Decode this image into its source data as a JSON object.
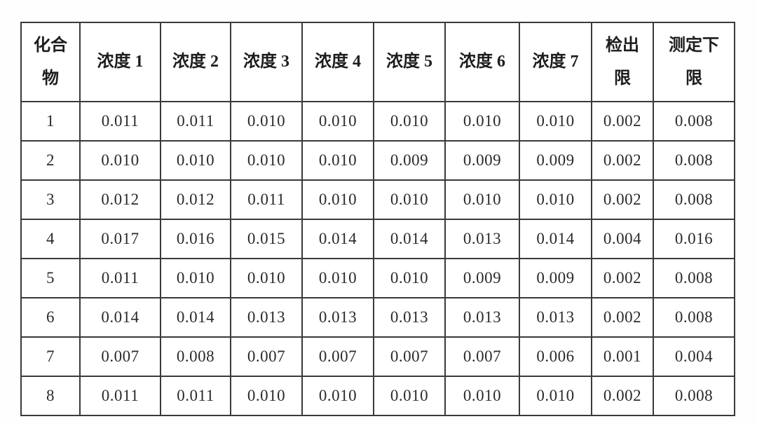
{
  "table": {
    "border_color": "#3a3a3a",
    "columns": [
      {
        "id": "compound",
        "label_lines": [
          "化合",
          "物"
        ]
      },
      {
        "id": "concentration-1",
        "label_lines": [
          "浓度 1"
        ]
      },
      {
        "id": "concentration-2",
        "label_lines": [
          "浓度 2"
        ]
      },
      {
        "id": "concentration-3",
        "label_lines": [
          "浓度 3"
        ]
      },
      {
        "id": "concentration-4",
        "label_lines": [
          "浓度 4"
        ]
      },
      {
        "id": "concentration-5",
        "label_lines": [
          "浓度 5"
        ]
      },
      {
        "id": "concentration-6",
        "label_lines": [
          "浓度 6"
        ]
      },
      {
        "id": "concentration-7",
        "label_lines": [
          "浓度 7"
        ]
      },
      {
        "id": "detection-limit",
        "label_lines": [
          "检出",
          "限"
        ]
      },
      {
        "id": "lower-determination-limit",
        "label_lines": [
          "测定下",
          "限"
        ]
      }
    ],
    "rows": [
      {
        "compound": "1",
        "values": [
          "0.011",
          "0.011",
          "0.010",
          "0.010",
          "0.010",
          "0.010",
          "0.010",
          "0.002",
          "0.008"
        ]
      },
      {
        "compound": "2",
        "values": [
          "0.010",
          "0.010",
          "0.010",
          "0.010",
          "0.009",
          "0.009",
          "0.009",
          "0.002",
          "0.008"
        ]
      },
      {
        "compound": "3",
        "values": [
          "0.012",
          "0.012",
          "0.011",
          "0.010",
          "0.010",
          "0.010",
          "0.010",
          "0.002",
          "0.008"
        ]
      },
      {
        "compound": "4",
        "values": [
          "0.017",
          "0.016",
          "0.015",
          "0.014",
          "0.014",
          "0.013",
          "0.014",
          "0.004",
          "0.016"
        ]
      },
      {
        "compound": "5",
        "values": [
          "0.011",
          "0.010",
          "0.010",
          "0.010",
          "0.010",
          "0.009",
          "0.009",
          "0.002",
          "0.008"
        ]
      },
      {
        "compound": "6",
        "values": [
          "0.014",
          "0.014",
          "0.013",
          "0.013",
          "0.013",
          "0.013",
          "0.013",
          "0.002",
          "0.008"
        ]
      },
      {
        "compound": "7",
        "values": [
          "0.007",
          "0.008",
          "0.007",
          "0.007",
          "0.007",
          "0.007",
          "0.006",
          "0.001",
          "0.004"
        ]
      },
      {
        "compound": "8",
        "values": [
          "0.011",
          "0.011",
          "0.010",
          "0.010",
          "0.010",
          "0.010",
          "0.010",
          "0.002",
          "0.008"
        ]
      }
    ]
  }
}
